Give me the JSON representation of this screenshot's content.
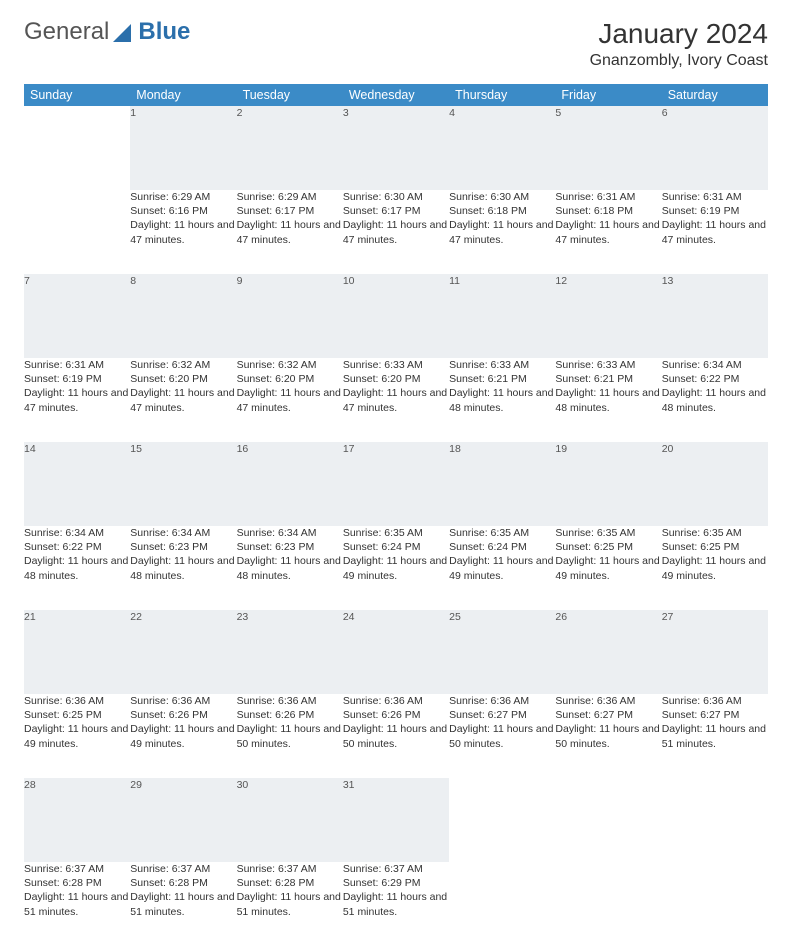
{
  "brand": {
    "part1": "General",
    "part2": "Blue"
  },
  "title": "January 2024",
  "location": "Gnanzombly, Ivory Coast",
  "columns": [
    "Sunday",
    "Monday",
    "Tuesday",
    "Wednesday",
    "Thursday",
    "Friday",
    "Saturday"
  ],
  "colors": {
    "header_bg": "#3b8bc7",
    "header_text": "#ffffff",
    "daynum_bg": "#eceff2",
    "row_border": "#3b6d95",
    "logo_gray": "#555555",
    "logo_blue": "#2b6fab",
    "page_bg": "#ffffff",
    "text": "#333333"
  },
  "weeks": [
    [
      {
        "n": "",
        "sr": "",
        "ss": "",
        "dl": ""
      },
      {
        "n": "1",
        "sr": "Sunrise: 6:29 AM",
        "ss": "Sunset: 6:16 PM",
        "dl": "Daylight: 11 hours and 47 minutes."
      },
      {
        "n": "2",
        "sr": "Sunrise: 6:29 AM",
        "ss": "Sunset: 6:17 PM",
        "dl": "Daylight: 11 hours and 47 minutes."
      },
      {
        "n": "3",
        "sr": "Sunrise: 6:30 AM",
        "ss": "Sunset: 6:17 PM",
        "dl": "Daylight: 11 hours and 47 minutes."
      },
      {
        "n": "4",
        "sr": "Sunrise: 6:30 AM",
        "ss": "Sunset: 6:18 PM",
        "dl": "Daylight: 11 hours and 47 minutes."
      },
      {
        "n": "5",
        "sr": "Sunrise: 6:31 AM",
        "ss": "Sunset: 6:18 PM",
        "dl": "Daylight: 11 hours and 47 minutes."
      },
      {
        "n": "6",
        "sr": "Sunrise: 6:31 AM",
        "ss": "Sunset: 6:19 PM",
        "dl": "Daylight: 11 hours and 47 minutes."
      }
    ],
    [
      {
        "n": "7",
        "sr": "Sunrise: 6:31 AM",
        "ss": "Sunset: 6:19 PM",
        "dl": "Daylight: 11 hours and 47 minutes."
      },
      {
        "n": "8",
        "sr": "Sunrise: 6:32 AM",
        "ss": "Sunset: 6:20 PM",
        "dl": "Daylight: 11 hours and 47 minutes."
      },
      {
        "n": "9",
        "sr": "Sunrise: 6:32 AM",
        "ss": "Sunset: 6:20 PM",
        "dl": "Daylight: 11 hours and 47 minutes."
      },
      {
        "n": "10",
        "sr": "Sunrise: 6:33 AM",
        "ss": "Sunset: 6:20 PM",
        "dl": "Daylight: 11 hours and 47 minutes."
      },
      {
        "n": "11",
        "sr": "Sunrise: 6:33 AM",
        "ss": "Sunset: 6:21 PM",
        "dl": "Daylight: 11 hours and 48 minutes."
      },
      {
        "n": "12",
        "sr": "Sunrise: 6:33 AM",
        "ss": "Sunset: 6:21 PM",
        "dl": "Daylight: 11 hours and 48 minutes."
      },
      {
        "n": "13",
        "sr": "Sunrise: 6:34 AM",
        "ss": "Sunset: 6:22 PM",
        "dl": "Daylight: 11 hours and 48 minutes."
      }
    ],
    [
      {
        "n": "14",
        "sr": "Sunrise: 6:34 AM",
        "ss": "Sunset: 6:22 PM",
        "dl": "Daylight: 11 hours and 48 minutes."
      },
      {
        "n": "15",
        "sr": "Sunrise: 6:34 AM",
        "ss": "Sunset: 6:23 PM",
        "dl": "Daylight: 11 hours and 48 minutes."
      },
      {
        "n": "16",
        "sr": "Sunrise: 6:34 AM",
        "ss": "Sunset: 6:23 PM",
        "dl": "Daylight: 11 hours and 48 minutes."
      },
      {
        "n": "17",
        "sr": "Sunrise: 6:35 AM",
        "ss": "Sunset: 6:24 PM",
        "dl": "Daylight: 11 hours and 49 minutes."
      },
      {
        "n": "18",
        "sr": "Sunrise: 6:35 AM",
        "ss": "Sunset: 6:24 PM",
        "dl": "Daylight: 11 hours and 49 minutes."
      },
      {
        "n": "19",
        "sr": "Sunrise: 6:35 AM",
        "ss": "Sunset: 6:25 PM",
        "dl": "Daylight: 11 hours and 49 minutes."
      },
      {
        "n": "20",
        "sr": "Sunrise: 6:35 AM",
        "ss": "Sunset: 6:25 PM",
        "dl": "Daylight: 11 hours and 49 minutes."
      }
    ],
    [
      {
        "n": "21",
        "sr": "Sunrise: 6:36 AM",
        "ss": "Sunset: 6:25 PM",
        "dl": "Daylight: 11 hours and 49 minutes."
      },
      {
        "n": "22",
        "sr": "Sunrise: 6:36 AM",
        "ss": "Sunset: 6:26 PM",
        "dl": "Daylight: 11 hours and 49 minutes."
      },
      {
        "n": "23",
        "sr": "Sunrise: 6:36 AM",
        "ss": "Sunset: 6:26 PM",
        "dl": "Daylight: 11 hours and 50 minutes."
      },
      {
        "n": "24",
        "sr": "Sunrise: 6:36 AM",
        "ss": "Sunset: 6:26 PM",
        "dl": "Daylight: 11 hours and 50 minutes."
      },
      {
        "n": "25",
        "sr": "Sunrise: 6:36 AM",
        "ss": "Sunset: 6:27 PM",
        "dl": "Daylight: 11 hours and 50 minutes."
      },
      {
        "n": "26",
        "sr": "Sunrise: 6:36 AM",
        "ss": "Sunset: 6:27 PM",
        "dl": "Daylight: 11 hours and 50 minutes."
      },
      {
        "n": "27",
        "sr": "Sunrise: 6:36 AM",
        "ss": "Sunset: 6:27 PM",
        "dl": "Daylight: 11 hours and 51 minutes."
      }
    ],
    [
      {
        "n": "28",
        "sr": "Sunrise: 6:37 AM",
        "ss": "Sunset: 6:28 PM",
        "dl": "Daylight: 11 hours and 51 minutes."
      },
      {
        "n": "29",
        "sr": "Sunrise: 6:37 AM",
        "ss": "Sunset: 6:28 PM",
        "dl": "Daylight: 11 hours and 51 minutes."
      },
      {
        "n": "30",
        "sr": "Sunrise: 6:37 AM",
        "ss": "Sunset: 6:28 PM",
        "dl": "Daylight: 11 hours and 51 minutes."
      },
      {
        "n": "31",
        "sr": "Sunrise: 6:37 AM",
        "ss": "Sunset: 6:29 PM",
        "dl": "Daylight: 11 hours and 51 minutes."
      },
      {
        "n": "",
        "sr": "",
        "ss": "",
        "dl": ""
      },
      {
        "n": "",
        "sr": "",
        "ss": "",
        "dl": ""
      },
      {
        "n": "",
        "sr": "",
        "ss": "",
        "dl": ""
      }
    ]
  ]
}
